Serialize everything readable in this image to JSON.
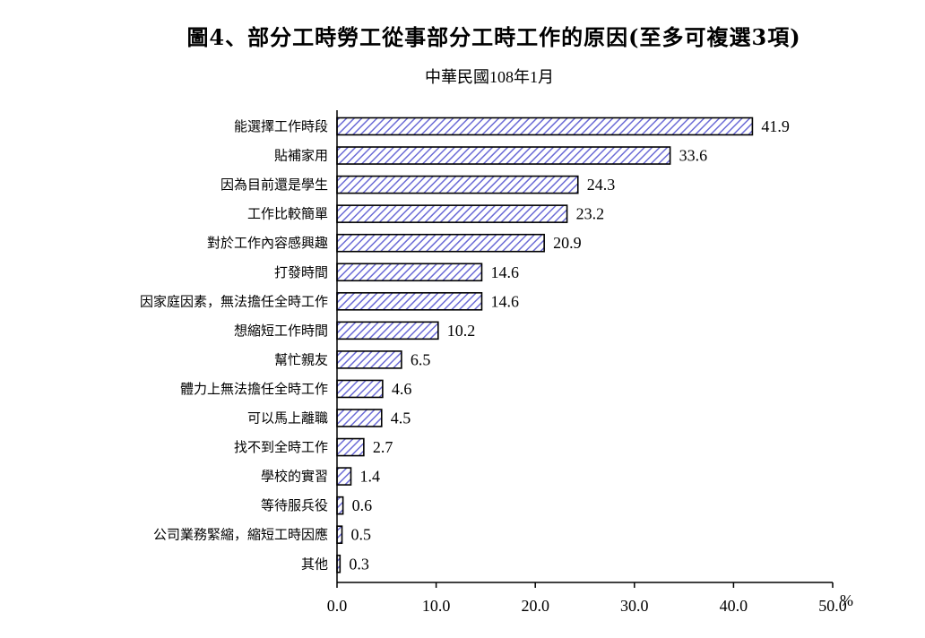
{
  "chart_data": {
    "type": "bar",
    "orientation": "horizontal",
    "title": "圖4、部分工時勞工從事部分工時工作的原因(至多可複選3項)",
    "subtitle": "中華民國108年1月",
    "unit": "%",
    "categories": [
      "能選擇工作時段",
      "貼補家用",
      "因為目前還是學生",
      "工作比較簡單",
      "對於工作內容感興趣",
      "打發時間",
      "因家庭因素，無法擔任全時工作",
      "想縮短工作時間",
      "幫忙親友",
      "體力上無法擔任全時工作",
      "可以馬上離職",
      "找不到全時工作",
      "學校的實習",
      "等待服兵役",
      "公司業務緊縮，縮短工時因應",
      "其他"
    ],
    "values": [
      41.9,
      33.6,
      24.3,
      23.2,
      20.9,
      14.6,
      14.6,
      10.2,
      6.5,
      4.6,
      4.5,
      2.7,
      1.4,
      0.6,
      0.5,
      0.3
    ],
    "value_labels": [
      "41.9",
      "33.6",
      "24.3",
      "23.2",
      "20.9",
      "14.6",
      "14.6",
      "10.2",
      "6.5",
      "4.6",
      "4.5",
      "2.7",
      "1.4",
      "0.6",
      "0.5",
      "0.3"
    ],
    "xlim": [
      0,
      50
    ],
    "xticks": [
      0,
      10,
      20,
      30,
      40,
      50
    ],
    "xtick_labels": [
      "0.0",
      "10.0",
      "20.0",
      "30.0",
      "40.0",
      "50.0"
    ],
    "grid": false,
    "colors": {
      "bar_fill": "#ffffff",
      "hatch": "#6b6bd6",
      "outline": "#000000"
    }
  }
}
